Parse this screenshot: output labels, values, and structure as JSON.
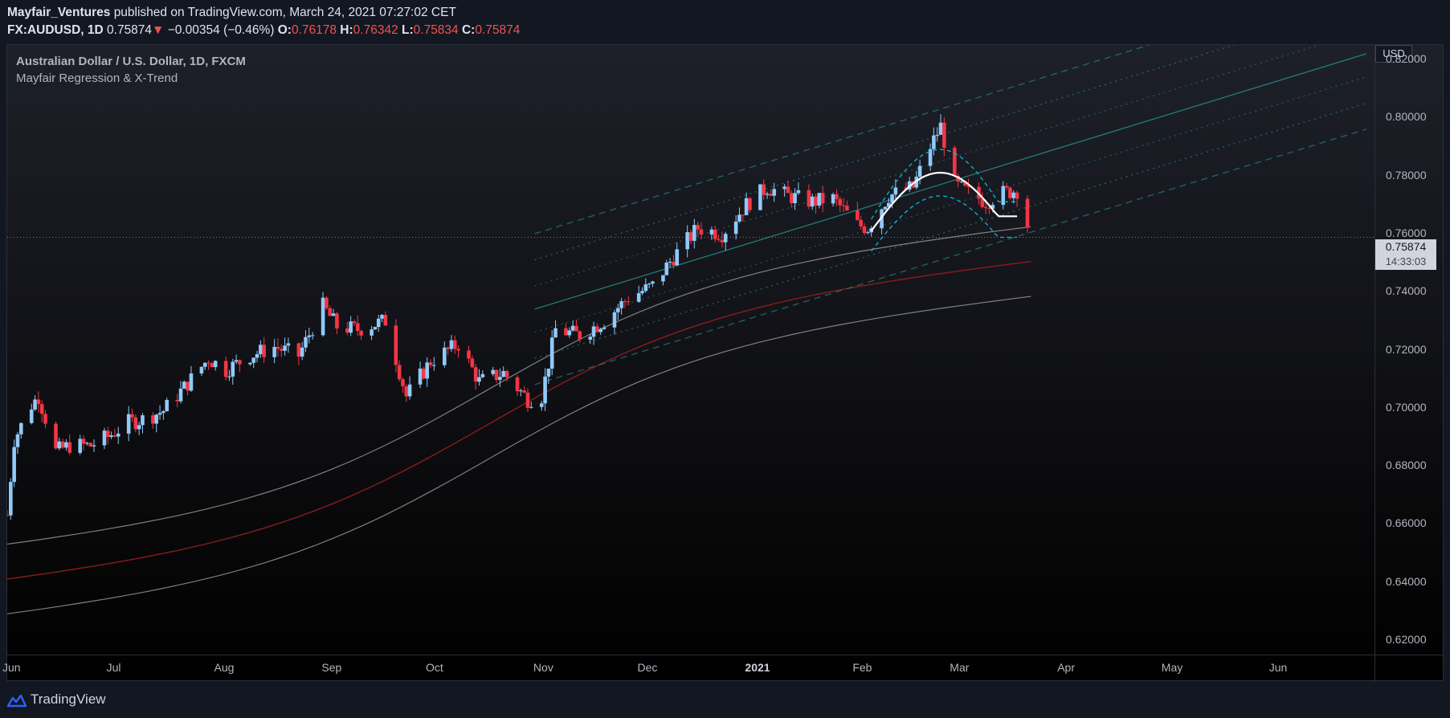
{
  "header": {
    "publisher": "Mayfair_Ventures",
    "published_text": "published on TradingView.com, March 24, 2021 07:27:02 CET",
    "symbol": "FX:AUDUSD, 1D",
    "last": "0.75874",
    "change": "−0.00354 (−0.46%)",
    "open_label": "O:",
    "open": "0.76178",
    "high_label": "H:",
    "high": "0.76342",
    "low_label": "L:",
    "low": "0.75834",
    "close_label": "C:",
    "close": "0.75874"
  },
  "legend": {
    "instrument": "Australian Dollar / U.S. Dollar, 1D, FXCM",
    "indicator": "Mayfair Regression & X-Trend"
  },
  "price_axis": {
    "currency": "USD",
    "labels": [
      "0.82000",
      "0.80000",
      "0.78000",
      "0.76000",
      "0.74000",
      "0.72000",
      "0.70000",
      "0.68000",
      "0.66000",
      "0.64000",
      "0.62000"
    ],
    "current_price": "0.75874",
    "countdown": "14:33:03"
  },
  "time_axis": {
    "labels": [
      "Jun",
      "Jul",
      "Aug",
      "Sep",
      "Oct",
      "Nov",
      "Dec",
      "2021",
      "Feb",
      "Mar",
      "Apr",
      "May",
      "Jun"
    ]
  },
  "footer": {
    "brand": "TradingView"
  },
  "colors": {
    "up": "#90caf9",
    "down": "#f23645",
    "channel": "#26a69a",
    "arc": "#00bcd4",
    "band": "#9e9e9e",
    "band_mid": "#8b1c1c"
  },
  "chart_data": {
    "type": "candlestick",
    "ylim": [
      0.615,
      0.825
    ],
    "x_start": "2020-06-01",
    "x_end": "2021-06-30",
    "price_path": [
      [
        "2020-06-01",
        0.663
      ],
      [
        "2020-06-03",
        0.689
      ],
      [
        "2020-06-08",
        0.701
      ],
      [
        "2020-06-10",
        0.704
      ],
      [
        "2020-06-15",
        0.685
      ],
      [
        "2020-06-19",
        0.687
      ],
      [
        "2020-06-25",
        0.687
      ],
      [
        "2020-06-30",
        0.69
      ],
      [
        "2020-07-06",
        0.695
      ],
      [
        "2020-07-10",
        0.696
      ],
      [
        "2020-07-16",
        0.699
      ],
      [
        "2020-07-22",
        0.707
      ],
      [
        "2020-07-29",
        0.717
      ],
      [
        "2020-08-03",
        0.713
      ],
      [
        "2020-08-10",
        0.718
      ],
      [
        "2020-08-17",
        0.721
      ],
      [
        "2020-08-24",
        0.718
      ],
      [
        "2020-08-31",
        0.735
      ],
      [
        "2020-09-04",
        0.728
      ],
      [
        "2020-09-10",
        0.727
      ],
      [
        "2020-09-18",
        0.73
      ],
      [
        "2020-09-24",
        0.704
      ],
      [
        "2020-10-01",
        0.716
      ],
      [
        "2020-10-09",
        0.722
      ],
      [
        "2020-10-15",
        0.709
      ],
      [
        "2020-10-22",
        0.712
      ],
      [
        "2020-10-29",
        0.703
      ],
      [
        "2020-11-02",
        0.704
      ],
      [
        "2020-11-06",
        0.727
      ],
      [
        "2020-11-13",
        0.725
      ],
      [
        "2020-11-20",
        0.73
      ],
      [
        "2020-11-27",
        0.738
      ],
      [
        "2020-12-04",
        0.742
      ],
      [
        "2020-12-10",
        0.752
      ],
      [
        "2020-12-17",
        0.762
      ],
      [
        "2020-12-24",
        0.76
      ],
      [
        "2020-12-31",
        0.77
      ],
      [
        "2021-01-06",
        0.776
      ],
      [
        "2021-01-12",
        0.773
      ],
      [
        "2021-01-19",
        0.771
      ],
      [
        "2021-01-25",
        0.772
      ],
      [
        "2021-02-01",
        0.763
      ],
      [
        "2021-02-04",
        0.762
      ],
      [
        "2021-02-10",
        0.773
      ],
      [
        "2021-02-17",
        0.776
      ],
      [
        "2021-02-22",
        0.79
      ],
      [
        "2021-02-25",
        0.797
      ],
      [
        "2021-03-01",
        0.777
      ],
      [
        "2021-03-05",
        0.774
      ],
      [
        "2021-03-10",
        0.771
      ],
      [
        "2021-03-15",
        0.774
      ],
      [
        "2021-03-19",
        0.775
      ],
      [
        "2021-03-23",
        0.759
      ]
    ],
    "bands": {
      "mid_start": 0.64,
      "mid_end": 0.751,
      "upper_offset": 0.006,
      "lower_offset": 0.006
    },
    "last_price": 0.75874
  }
}
